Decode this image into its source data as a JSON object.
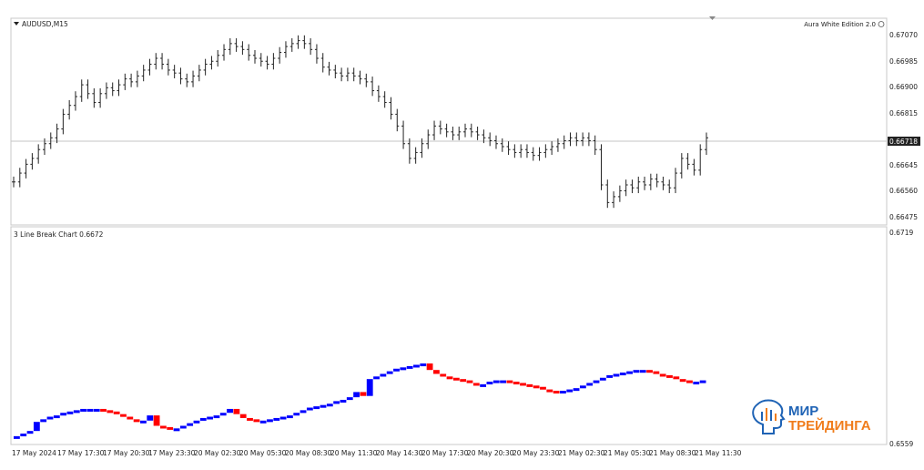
{
  "main_panel": {
    "symbol_label": "AUDUSD,M15",
    "indicator_title": "Aura White Edition 2.0",
    "price_ticks": [
      "0.67070",
      "0.66985",
      "0.66900",
      "0.66815",
      "0.66718",
      "0.66645",
      "0.66560",
      "0.66475"
    ],
    "current_price": "0.66718",
    "y_range": [
      0.6643,
      0.6712
    ]
  },
  "sub_panel": {
    "title": "3 Line Break Chart 0.6672",
    "ticks": [
      "0.6719",
      "0.6559"
    ]
  },
  "time_axis": {
    "labels": [
      "17 May 2024",
      "17 May 17:30",
      "17 May 20:30",
      "17 May 23:30",
      "20 May 02:30",
      "20 May 05:30",
      "20 May 08:30",
      "20 May 11:30",
      "20 May 14:30",
      "20 May 17:30",
      "20 May 20:30",
      "20 May 23:30",
      "21 May 02:30",
      "21 May 05:30",
      "21 May 08:30",
      "21 May 11:30"
    ]
  },
  "logo": {
    "line1": "МИР",
    "line2": "ТРЕЙДИНГА"
  },
  "colors": {
    "up": "#0000ff",
    "down": "#ff0000",
    "logo_blue": "#1f63b5",
    "logo_orange": "#f07c1b"
  },
  "chart_data": [
    {
      "type": "candlestick",
      "title": "AUDUSD,M15",
      "series": [
        {
          "name": "AUDUSD",
          "values": [
            0.6657,
            0.666,
            0.6663,
            0.6665,
            0.6668,
            0.667,
            0.6672,
            0.6675,
            0.668,
            0.6683,
            0.6686,
            0.669,
            0.6687,
            0.6684,
            0.6687,
            0.6689,
            0.6688,
            0.669,
            0.6692,
            0.6691,
            0.6693,
            0.6695,
            0.6697,
            0.6699,
            0.6697,
            0.6695,
            0.6694,
            0.6692,
            0.6691,
            0.6693,
            0.6695,
            0.6697,
            0.6698,
            0.67,
            0.6702,
            0.6704,
            0.6703,
            0.6702,
            0.67,
            0.6699,
            0.6698,
            0.6697,
            0.6699,
            0.6701,
            0.6703,
            0.6704,
            0.6705,
            0.6704,
            0.6702,
            0.6699,
            0.6696,
            0.6695,
            0.6694,
            0.6693,
            0.6694,
            0.6693,
            0.6692,
            0.6691,
            0.6688,
            0.6686,
            0.6684,
            0.668,
            0.6676,
            0.667,
            0.6665,
            0.6667,
            0.667,
            0.6673,
            0.6676,
            0.6675,
            0.6674,
            0.6673,
            0.6674,
            0.6675,
            0.6674,
            0.6673,
            0.6672,
            0.6671,
            0.667,
            0.6669,
            0.6668,
            0.6667,
            0.6668,
            0.6667,
            0.6666,
            0.6667,
            0.6668,
            0.6669,
            0.667,
            0.6671,
            0.6672,
            0.6671,
            0.6672,
            0.6671,
            0.6668,
            0.6656,
            0.665,
            0.6652,
            0.6654,
            0.6656,
            0.6655,
            0.6657,
            0.6656,
            0.6658,
            0.6657,
            0.6656,
            0.6655,
            0.666,
            0.6665,
            0.6663,
            0.6661,
            0.6668,
            0.6672
          ]
        }
      ]
    },
    {
      "type": "bar",
      "title": "3 Line Break Chart 0.6672",
      "ylim": [
        0.6559,
        0.6719
      ],
      "series": [
        {
          "name": "3 Line Break",
          "values": [
            0.6562,
            0.6564,
            0.6566,
            0.6568,
            0.6575,
            0.6577,
            0.6579,
            0.658,
            0.6582,
            0.6583,
            0.6584,
            0.6585,
            0.6585,
            0.6585,
            0.6584,
            0.6583,
            0.6581,
            0.6579,
            0.6577,
            0.6575,
            0.6576,
            0.658,
            0.6572,
            0.6571,
            0.657,
            0.657,
            0.6572,
            0.6574,
            0.6576,
            0.6578,
            0.6579,
            0.658,
            0.6582,
            0.6585,
            0.6581,
            0.6578,
            0.6577,
            0.6576,
            0.6576,
            0.6577,
            0.6578,
            0.6579,
            0.658,
            0.6582,
            0.6584,
            0.6586,
            0.6587,
            0.6588,
            0.6589,
            0.6591,
            0.6592,
            0.6594,
            0.6598,
            0.6595,
            0.6608,
            0.661,
            0.6612,
            0.6614,
            0.6616,
            0.6617,
            0.6618,
            0.6619,
            0.662,
            0.6615,
            0.6612,
            0.661,
            0.6609,
            0.6608,
            0.6607,
            0.6605,
            0.6604,
            0.6604,
            0.6606,
            0.6607,
            0.6607,
            0.6606,
            0.6605,
            0.6604,
            0.6603,
            0.6602,
            0.66,
            0.6599,
            0.6598,
            0.6599,
            0.66,
            0.6601,
            0.6603,
            0.6605,
            0.6607,
            0.6609,
            0.6611,
            0.6612,
            0.6613,
            0.6614,
            0.6615,
            0.6615,
            0.6614,
            0.6612,
            0.6611,
            0.661,
            0.6608,
            0.6607,
            0.6605,
            0.6606,
            0.6607
          ]
        }
      ]
    }
  ]
}
